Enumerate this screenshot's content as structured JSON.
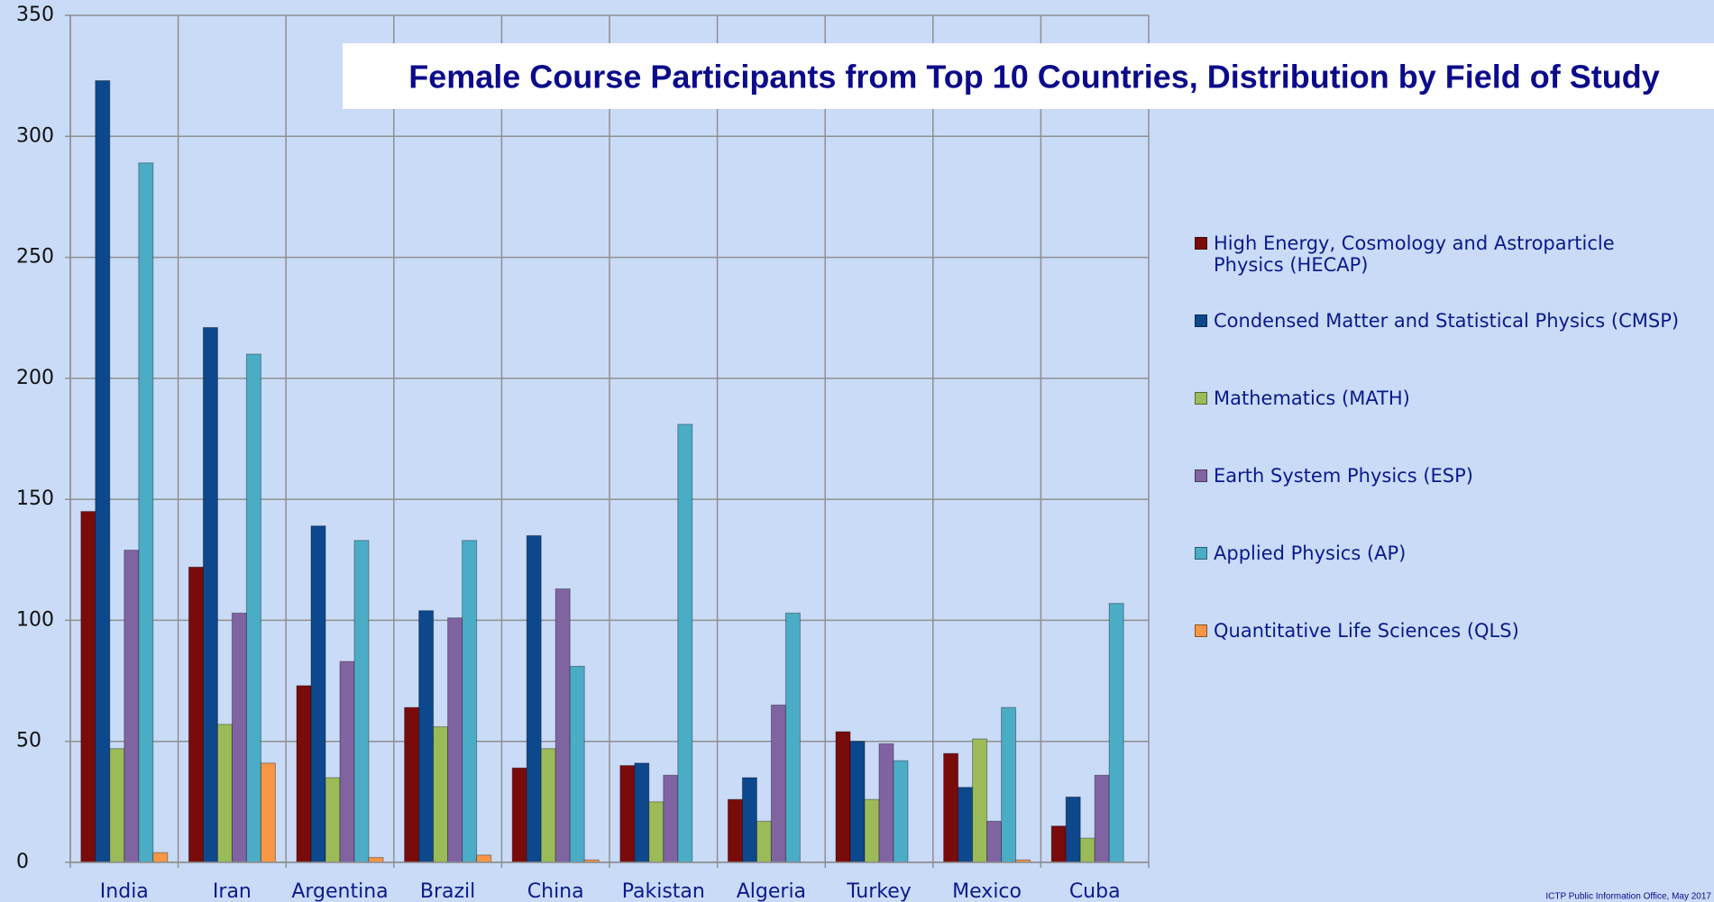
{
  "chart_data": {
    "type": "bar",
    "title": "Female Course Participants from Top 10 Countries, Distribution by Field of Study",
    "source": "ICTP Public Information Office, May 2017",
    "categories": [
      "India",
      "Iran",
      "Argentina",
      "Brazil",
      "China",
      "Pakistan",
      "Algeria",
      "Turkey",
      "Mexico",
      "Cuba"
    ],
    "series": [
      {
        "name": "High Energy, Cosmology and Astroparticle Physics (HECAP)",
        "color": "#7a0b0b",
        "values": [
          145,
          122,
          73,
          64,
          39,
          40,
          26,
          54,
          45,
          15
        ]
      },
      {
        "name": "Condensed Matter and Statistical Physics (CMSP)",
        "color": "#0d478c",
        "values": [
          323,
          221,
          139,
          104,
          135,
          41,
          35,
          50,
          31,
          27
        ]
      },
      {
        "name": "Mathematics (MATH)",
        "color": "#9bbb59",
        "values": [
          47,
          57,
          35,
          56,
          47,
          25,
          17,
          26,
          51,
          10
        ]
      },
      {
        "name": "Earth System Physics (ESP)",
        "color": "#8064a2",
        "values": [
          129,
          103,
          83,
          101,
          113,
          36,
          65,
          49,
          17,
          36
        ]
      },
      {
        "name": "Applied Physics (AP)",
        "color": "#4bacc6",
        "values": [
          289,
          210,
          133,
          133,
          81,
          181,
          103,
          42,
          64,
          107
        ]
      },
      {
        "name": "Quantitative Life Sciences (QLS)",
        "color": "#f79646",
        "values": [
          4,
          41,
          2,
          3,
          1,
          0,
          0,
          0,
          1,
          0
        ]
      }
    ],
    "ylim": [
      0,
      350
    ],
    "yticks": [
      0,
      50,
      100,
      150,
      200,
      250,
      300,
      350
    ],
    "grid": true,
    "legend": "right"
  }
}
